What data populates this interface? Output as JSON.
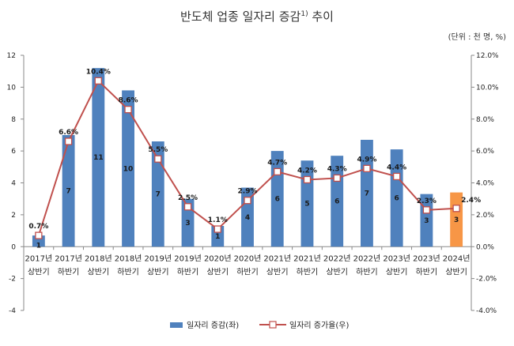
{
  "chart_data": {
    "type": "bar+line",
    "title": "반도체 업종 일자리 증감",
    "title_sup": "1)",
    "title_suffix": " 추이",
    "unit": "(단위 : 천 명, %)",
    "categories_top": [
      "2017년",
      "2017년",
      "2018년",
      "2018년",
      "2019년",
      "2019년",
      "2020년",
      "2020년",
      "2021년",
      "2021년",
      "2022년",
      "2022년",
      "2023년",
      "2023년",
      "2024년"
    ],
    "categories_bottom": [
      "상반기",
      "하반기",
      "상반기",
      "하반기",
      "상반기",
      "하반기",
      "상반기",
      "하반기",
      "상반기",
      "하반기",
      "상반기",
      "하반기",
      "상반기",
      "하반기",
      "상반기"
    ],
    "series": [
      {
        "name": "일자리 증감(좌)",
        "type": "bar",
        "axis": "left",
        "color": "#4F81BD",
        "highlight_color": "#F79646",
        "highlight_index": 14,
        "values": [
          0.7,
          7.0,
          11.2,
          9.8,
          6.6,
          3.0,
          1.3,
          3.7,
          6.0,
          5.4,
          5.7,
          6.7,
          6.1,
          3.3,
          3.4
        ],
        "labels": [
          "1",
          "7",
          "11",
          "10",
          "7",
          "3",
          "1",
          "4",
          "6",
          "5",
          "6",
          "7",
          "6",
          "3",
          "3"
        ]
      },
      {
        "name": "일자리 증가율(우)",
        "type": "line",
        "axis": "right",
        "color": "#C0504D",
        "values": [
          0.7,
          6.6,
          10.4,
          8.6,
          5.5,
          2.5,
          1.1,
          2.9,
          4.7,
          4.2,
          4.3,
          4.9,
          4.4,
          2.3,
          2.4
        ],
        "labels": [
          "0.7%",
          "6.6%",
          "10.4%",
          "8.6%",
          "5.5%",
          "2.5%",
          "1.1%",
          "2.9%",
          "4.7%",
          "4.2%",
          "4.3%",
          "4.9%",
          "4.4%",
          "2.3%",
          "2.4%"
        ]
      }
    ],
    "yleft": {
      "ylim": [
        -4,
        12
      ],
      "ticks": [
        "-4",
        "-2",
        "0",
        "2",
        "4",
        "6",
        "8",
        "10",
        "12"
      ]
    },
    "yright": {
      "ylim": [
        -4,
        12
      ],
      "ticks": [
        "-4.0%",
        "-2.0%",
        "0.0%",
        "2.0%",
        "4.0%",
        "6.0%",
        "8.0%",
        "10.0%",
        "12.0%"
      ]
    },
    "grid": false,
    "legend_position": "bottom-center"
  }
}
